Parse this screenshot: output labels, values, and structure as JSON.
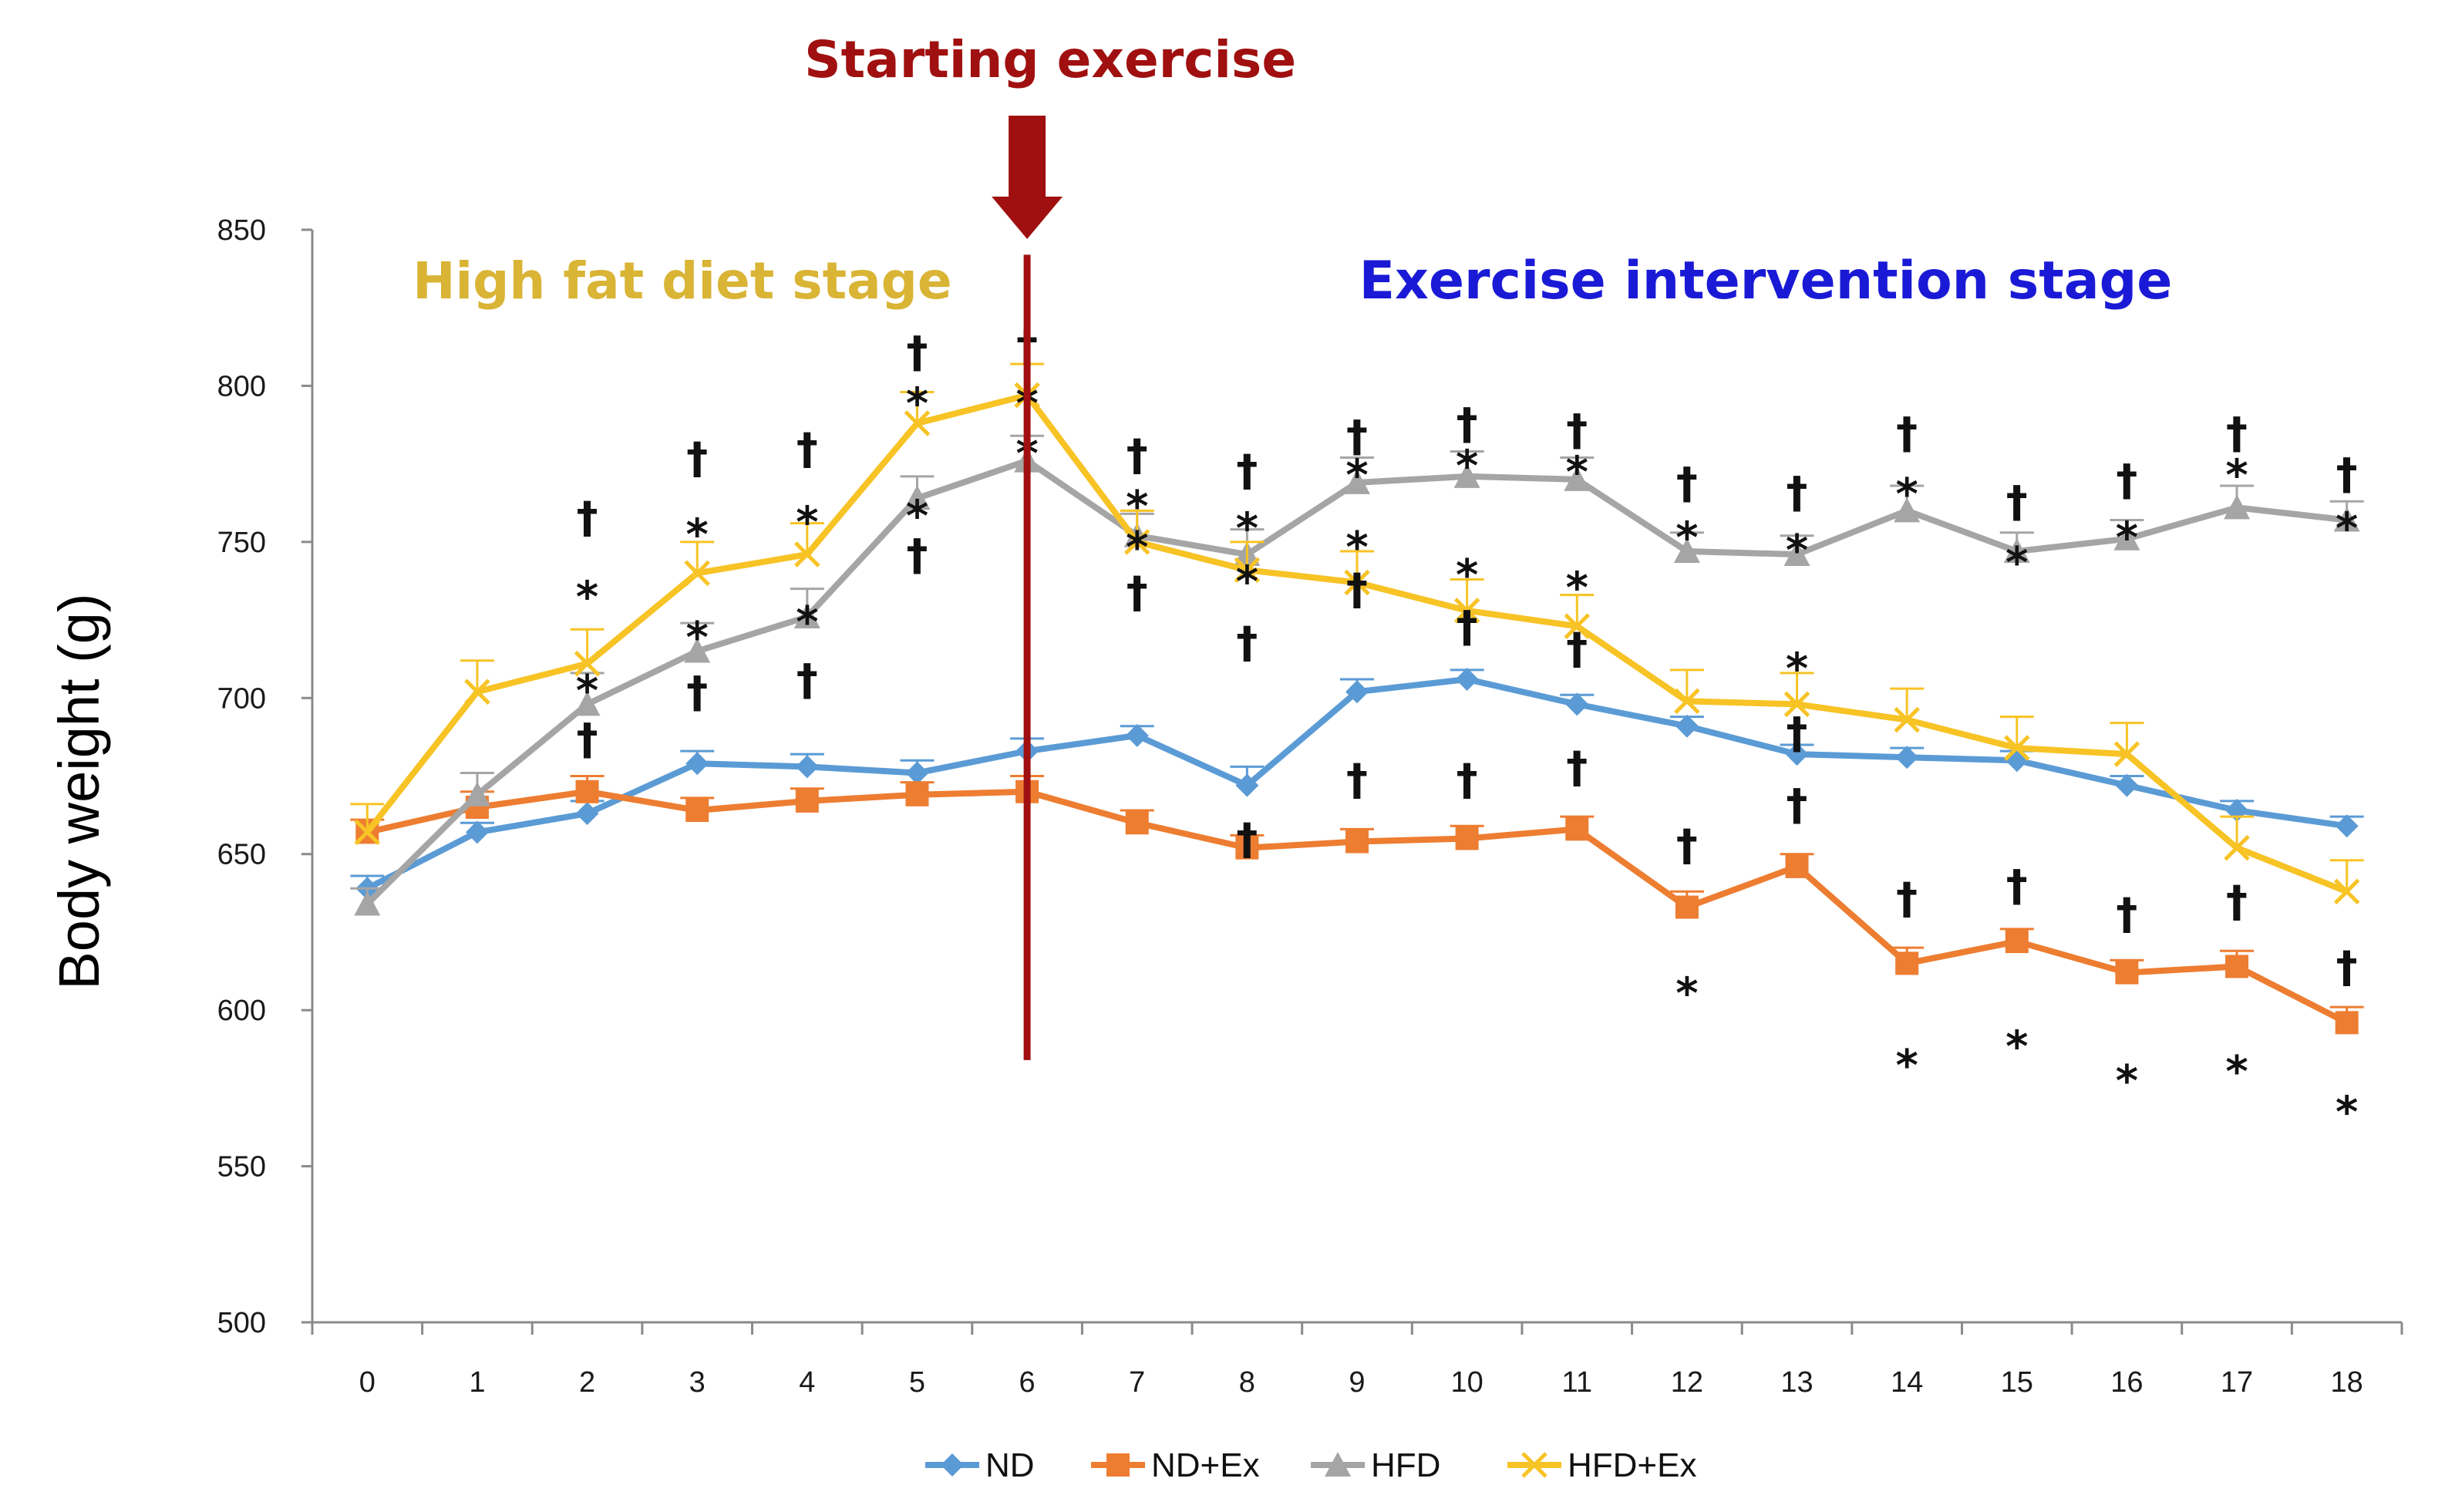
{
  "chart_data": {
    "type": "line",
    "title": "",
    "xlabel": "",
    "ylabel": "Body weight (g)",
    "ylim": [
      500,
      850
    ],
    "yticks": [
      500,
      550,
      600,
      650,
      700,
      750,
      800,
      850
    ],
    "x": [
      0,
      1,
      2,
      3,
      4,
      5,
      6,
      7,
      8,
      9,
      10,
      11,
      12,
      13,
      14,
      15,
      16,
      17,
      18
    ],
    "grid": false,
    "legend_position": "bottom",
    "series": [
      {
        "name": "ND",
        "color": "#5B9BD5",
        "marker": "diamond",
        "values": [
          639,
          657,
          663,
          679,
          678,
          676,
          683,
          688,
          672,
          702,
          706,
          698,
          691,
          682,
          681,
          680,
          672,
          664,
          659
        ],
        "errors": [
          4,
          3,
          4,
          4,
          4,
          4,
          4,
          3,
          6,
          4,
          3,
          3,
          3,
          3,
          3,
          3,
          3,
          3,
          3
        ]
      },
      {
        "name": "ND+Ex",
        "color": "#ED7D31",
        "marker": "square",
        "values": [
          657,
          665,
          670,
          664,
          667,
          669,
          670,
          660,
          652,
          654,
          655,
          658,
          633,
          646,
          615,
          622,
          612,
          614,
          596
        ],
        "errors": [
          4,
          5,
          5,
          4,
          4,
          4,
          5,
          4,
          4,
          4,
          4,
          4,
          5,
          4,
          5,
          4,
          4,
          5,
          5
        ]
      },
      {
        "name": "HFD",
        "color": "#A5A5A5",
        "marker": "triangle",
        "values": [
          634,
          669,
          698,
          715,
          726,
          764,
          776,
          752,
          746,
          769,
          771,
          770,
          747,
          746,
          760,
          747,
          751,
          761,
          757
        ],
        "errors": [
          5,
          7,
          10,
          9,
          9,
          7,
          8,
          7,
          8,
          8,
          8,
          7,
          6,
          6,
          8,
          6,
          6,
          7,
          6
        ]
      },
      {
        "name": "HFD+Ex",
        "color": "#F7C325",
        "marker": "x",
        "values": [
          657,
          702,
          711,
          740,
          746,
          788,
          797,
          750,
          741,
          737,
          728,
          723,
          699,
          698,
          693,
          684,
          682,
          652,
          638
        ],
        "errors": [
          9,
          10,
          11,
          10,
          10,
          10,
          10,
          10,
          9,
          10,
          10,
          10,
          10,
          10,
          10,
          10,
          10,
          10,
          10
        ]
      }
    ],
    "annotations": {
      "starting_exercise": "Starting exercise",
      "starting_exercise_x": 6,
      "stage_left": "High fat diet stage",
      "stage_right": "Exercise intervention stage",
      "stage_left_color": "#D9B435",
      "stage_right_color": "#1A1AD6",
      "marker_color": "#A01010"
    },
    "significance_marks": [
      {
        "x": 2,
        "y": 758,
        "symbol": "†"
      },
      {
        "x": 2,
        "y": 736,
        "symbol": "*"
      },
      {
        "x": 2,
        "y": 706,
        "symbol": "*"
      },
      {
        "x": 2,
        "y": 687,
        "symbol": "†"
      },
      {
        "x": 3,
        "y": 777,
        "symbol": "†"
      },
      {
        "x": 3,
        "y": 756,
        "symbol": "*"
      },
      {
        "x": 3,
        "y": 723,
        "symbol": "*"
      },
      {
        "x": 3,
        "y": 702,
        "symbol": "†"
      },
      {
        "x": 4,
        "y": 780,
        "symbol": "†"
      },
      {
        "x": 4,
        "y": 760,
        "symbol": "*"
      },
      {
        "x": 4,
        "y": 728,
        "symbol": "*"
      },
      {
        "x": 4,
        "y": 706,
        "symbol": "†"
      },
      {
        "x": 5,
        "y": 811,
        "symbol": "†"
      },
      {
        "x": 5,
        "y": 798,
        "symbol": "*"
      },
      {
        "x": 5,
        "y": 762,
        "symbol": "*"
      },
      {
        "x": 5,
        "y": 746,
        "symbol": "†"
      },
      {
        "x": 6,
        "y": 813,
        "symbol": "†"
      },
      {
        "x": 6,
        "y": 798,
        "symbol": "*"
      },
      {
        "x": 6,
        "y": 782,
        "symbol": "*"
      },
      {
        "x": 7,
        "y": 778,
        "symbol": "†"
      },
      {
        "x": 7,
        "y": 765,
        "symbol": "*"
      },
      {
        "x": 7,
        "y": 752,
        "symbol": "*"
      },
      {
        "x": 7,
        "y": 734,
        "symbol": "†"
      },
      {
        "x": 8,
        "y": 773,
        "symbol": "†"
      },
      {
        "x": 8,
        "y": 758,
        "symbol": "*"
      },
      {
        "x": 8,
        "y": 741,
        "symbol": "*"
      },
      {
        "x": 8,
        "y": 718,
        "symbol": "†"
      },
      {
        "x": 8,
        "y": 655,
        "symbol": "†"
      },
      {
        "x": 9,
        "y": 784,
        "symbol": "†"
      },
      {
        "x": 9,
        "y": 775,
        "symbol": "*"
      },
      {
        "x": 9,
        "y": 752,
        "symbol": "*"
      },
      {
        "x": 9,
        "y": 735,
        "symbol": "†"
      },
      {
        "x": 9,
        "y": 674,
        "symbol": "†"
      },
      {
        "x": 10,
        "y": 788,
        "symbol": "†"
      },
      {
        "x": 10,
        "y": 778,
        "symbol": "*"
      },
      {
        "x": 10,
        "y": 743,
        "symbol": "*"
      },
      {
        "x": 10,
        "y": 723,
        "symbol": "†"
      },
      {
        "x": 10,
        "y": 674,
        "symbol": "†"
      },
      {
        "x": 11,
        "y": 786,
        "symbol": "†"
      },
      {
        "x": 11,
        "y": 776,
        "symbol": "*"
      },
      {
        "x": 11,
        "y": 739,
        "symbol": "*"
      },
      {
        "x": 11,
        "y": 716,
        "symbol": "†"
      },
      {
        "x": 11,
        "y": 678,
        "symbol": "†"
      },
      {
        "x": 12,
        "y": 769,
        "symbol": "†"
      },
      {
        "x": 12,
        "y": 755,
        "symbol": "*"
      },
      {
        "x": 12,
        "y": 653,
        "symbol": "†"
      },
      {
        "x": 12,
        "y": 609,
        "symbol": "*"
      },
      {
        "x": 13,
        "y": 766,
        "symbol": "†"
      },
      {
        "x": 13,
        "y": 751,
        "symbol": "*"
      },
      {
        "x": 13,
        "y": 713,
        "symbol": "*"
      },
      {
        "x": 13,
        "y": 689,
        "symbol": "†"
      },
      {
        "x": 13,
        "y": 666,
        "symbol": "†"
      },
      {
        "x": 14,
        "y": 785,
        "symbol": "†"
      },
      {
        "x": 14,
        "y": 769,
        "symbol": "*"
      },
      {
        "x": 14,
        "y": 636,
        "symbol": "†"
      },
      {
        "x": 14,
        "y": 586,
        "symbol": "*"
      },
      {
        "x": 15,
        "y": 763,
        "symbol": "†"
      },
      {
        "x": 15,
        "y": 747,
        "symbol": "*"
      },
      {
        "x": 15,
        "y": 640,
        "symbol": "†"
      },
      {
        "x": 15,
        "y": 592,
        "symbol": "*"
      },
      {
        "x": 16,
        "y": 770,
        "symbol": "†"
      },
      {
        "x": 16,
        "y": 755,
        "symbol": "*"
      },
      {
        "x": 16,
        "y": 631,
        "symbol": "†"
      },
      {
        "x": 16,
        "y": 581,
        "symbol": "*"
      },
      {
        "x": 17,
        "y": 785,
        "symbol": "†"
      },
      {
        "x": 17,
        "y": 775,
        "symbol": "*"
      },
      {
        "x": 17,
        "y": 635,
        "symbol": "†"
      },
      {
        "x": 17,
        "y": 584,
        "symbol": "*"
      },
      {
        "x": 18,
        "y": 772,
        "symbol": "†"
      },
      {
        "x": 18,
        "y": 758,
        "symbol": "*"
      },
      {
        "x": 18,
        "y": 614,
        "symbol": "†"
      },
      {
        "x": 18,
        "y": 571,
        "symbol": "*"
      }
    ]
  }
}
